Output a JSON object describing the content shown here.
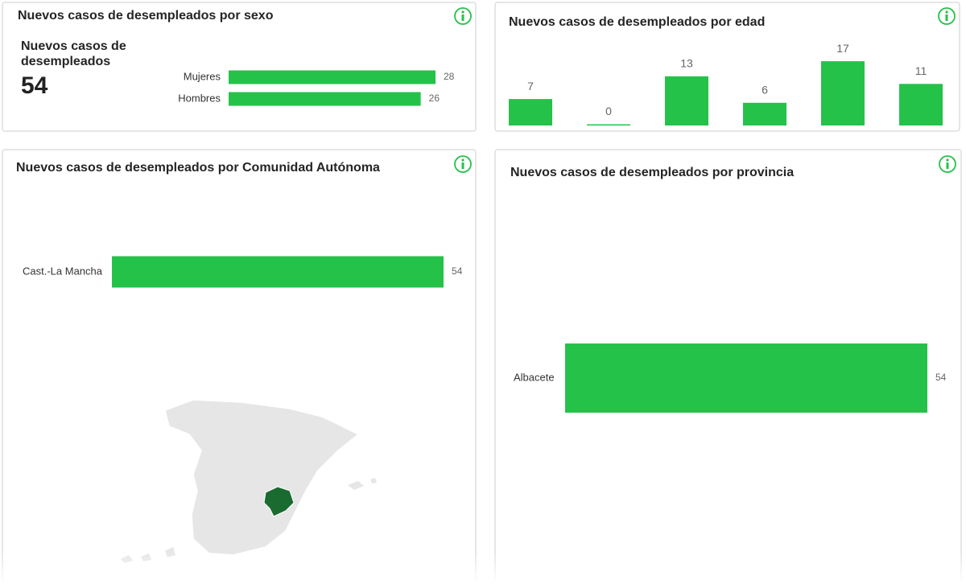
{
  "kpi": {
    "label": "Nuevos casos de desempleados",
    "value": 54
  },
  "chart_data": [
    {
      "type": "hbar",
      "title": "Nuevos casos de desempleados por sexo",
      "categories": [
        "Mujeres",
        "Hombres"
      ],
      "values": [
        28,
        26
      ],
      "color": "#25c24a"
    },
    {
      "type": "bar",
      "title": "Nuevos casos de desempleados por edad",
      "categories": [
        null,
        null,
        null,
        null,
        null,
        null
      ],
      "values": [
        7,
        0,
        13,
        6,
        17,
        11
      ],
      "color": "#25c24a"
    },
    {
      "type": "hbar",
      "title": "Nuevos casos de desempleados por Comunidad Autónoma",
      "categories": [
        "Cast.-La Mancha"
      ],
      "values": [
        54
      ],
      "color": "#25c24a"
    },
    {
      "type": "hbar",
      "title": "Nuevos casos de desempleados por provincia",
      "categories": [
        "Albacete"
      ],
      "values": [
        54
      ],
      "color": "#25c24a"
    }
  ]
}
